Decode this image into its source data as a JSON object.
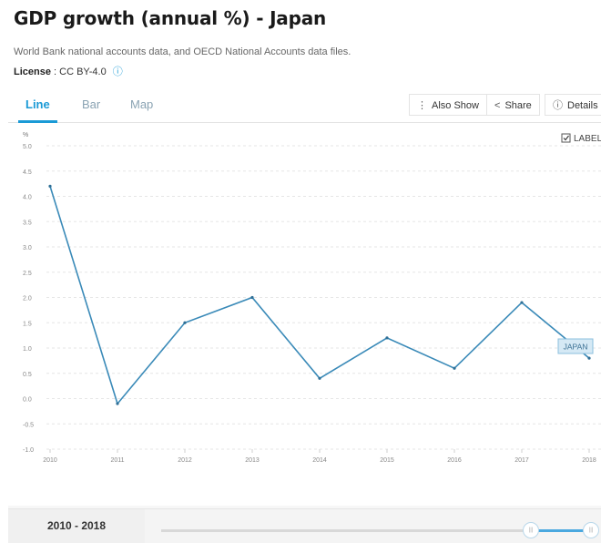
{
  "header": {
    "title": "GDP growth (annual %) - Japan",
    "source": "World Bank national accounts data, and OECD National Accounts data files.",
    "license_label": "License",
    "license_value": " : CC BY-4.0",
    "info_icon": "info-circle-icon"
  },
  "tabs": [
    {
      "label": "Line",
      "active": true
    },
    {
      "label": "Bar",
      "active": false
    },
    {
      "label": "Map",
      "active": false
    }
  ],
  "toolbar": {
    "also_show": "Also Show",
    "share": "Share",
    "details": "Details"
  },
  "chart_labels_toggle": {
    "label": "LABEL",
    "checked": true
  },
  "chart_data": {
    "type": "line",
    "title": "",
    "xlabel": "",
    "ylabel": "%",
    "x": [
      2010,
      2011,
      2012,
      2013,
      2014,
      2015,
      2016,
      2017,
      2018
    ],
    "series": [
      {
        "name": "JAPAN",
        "values": [
          4.2,
          -0.1,
          1.5,
          2.0,
          0.4,
          1.2,
          0.6,
          1.9,
          0.8
        ]
      }
    ],
    "ylim": [
      -1.0,
      5.0
    ],
    "yticks": [
      "5.0",
      "4.5",
      "4.0",
      "3.5",
      "3.0",
      "2.5",
      "2.0",
      "1.5",
      "1.0",
      "0.5",
      "0.0",
      "-0.5",
      "-1.0"
    ],
    "xticks": [
      "2010",
      "2011",
      "2012",
      "2013",
      "2014",
      "2015",
      "2016",
      "2017",
      "2018"
    ],
    "line_color": "#3a8ab8",
    "grid": true
  },
  "footer": {
    "range_label": "2010 - 2018"
  }
}
